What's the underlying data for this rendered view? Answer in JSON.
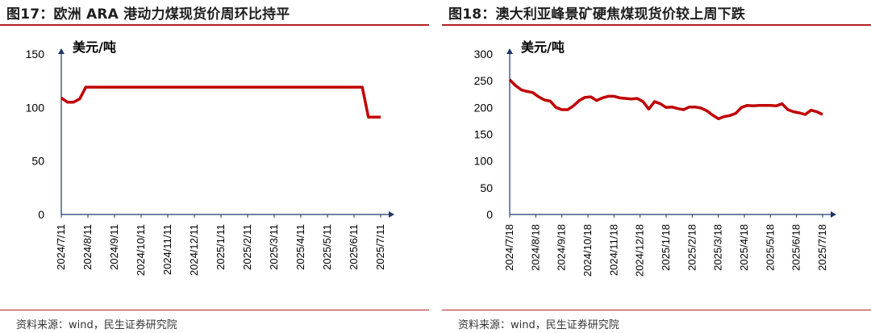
{
  "chart_data": [
    {
      "type": "line",
      "title": "图17：欧洲 ARA 港动力煤现货价周环比持平",
      "unit": "美元/吨",
      "source": "资料来源：wind，民生证券研究院",
      "ylim": [
        0,
        150
      ],
      "yticks": [
        "0",
        "50",
        "100",
        "150"
      ],
      "xticks": [
        "2024/7/11",
        "2024/8/11",
        "2024/9/11",
        "2024/10/11",
        "2024/11/11",
        "2024/12/11",
        "2025/1/11",
        "2025/2/11",
        "2025/3/11",
        "2025/4/11",
        "2025/5/11",
        "2025/6/11",
        "2025/7/11"
      ],
      "color": "#c00000",
      "series": [
        {
          "x": [
            "2024/7/11",
            "2024/7/18",
            "2024/7/25",
            "2024/8/1",
            "2024/8/8",
            "2025/6/20",
            "2025/6/27",
            "2025/7/4",
            "2025/7/11"
          ],
          "values": [
            109,
            105,
            105,
            108,
            119,
            119,
            91,
            91,
            91
          ]
        }
      ]
    },
    {
      "type": "line",
      "title": "图18：澳大利亚峰景矿硬焦煤现货价较上周下跌",
      "unit": "美元/吨",
      "source": "资料来源：wind，民生证券研究院",
      "ylim": [
        0,
        300
      ],
      "yticks": [
        "0",
        "50",
        "100",
        "150",
        "200",
        "250",
        "300"
      ],
      "xticks": [
        "2024/7/18",
        "2024/8/18",
        "2024/9/18",
        "2024/10/18",
        "2024/11/18",
        "2024/12/18",
        "2025/1/18",
        "2025/2/18",
        "2025/3/18",
        "2025/4/18",
        "2025/5/18",
        "2025/6/18",
        "2025/7/18"
      ],
      "color": "#c00000",
      "series": [
        {
          "values": [
            252,
            241,
            233,
            230,
            228,
            220,
            214,
            212,
            200,
            196,
            196,
            203,
            213,
            219,
            220,
            213,
            218,
            221,
            221,
            218,
            217,
            216,
            217,
            211,
            197,
            211,
            207,
            200,
            201,
            198,
            196,
            201,
            201,
            199,
            194,
            186,
            179,
            183,
            185,
            189,
            200,
            204,
            203,
            204,
            204,
            204,
            203,
            207,
            196,
            192,
            190,
            187,
            195,
            192,
            187
          ]
        }
      ]
    }
  ]
}
